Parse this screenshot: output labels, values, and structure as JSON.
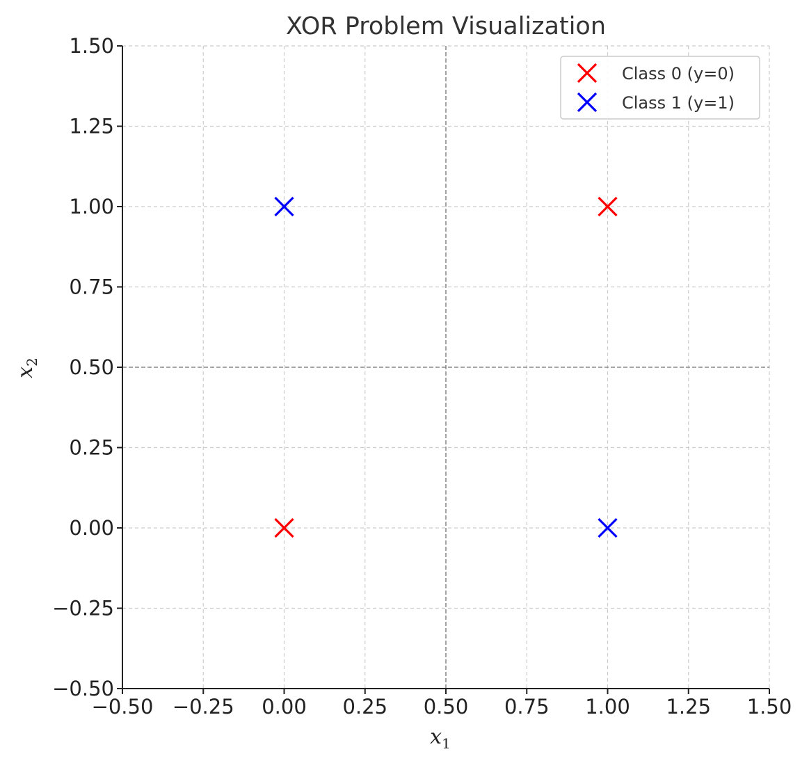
{
  "chart_data": {
    "type": "scatter",
    "title": "XOR Problem Visualization",
    "xlabel": {
      "base": "x",
      "sub": "1"
    },
    "ylabel": {
      "base": "x",
      "sub": "2"
    },
    "xlim": [
      -0.5,
      1.5
    ],
    "ylim": [
      -0.5,
      1.5
    ],
    "xticks": [
      -0.5,
      -0.25,
      0.0,
      0.25,
      0.5,
      0.75,
      1.0,
      1.25,
      1.5
    ],
    "yticks": [
      -0.5,
      -0.25,
      0.0,
      0.25,
      0.5,
      0.75,
      1.0,
      1.25,
      1.5
    ],
    "xtick_labels": [
      "−0.50",
      "−0.25",
      "0.00",
      "0.25",
      "0.50",
      "0.75",
      "1.00",
      "1.25",
      "1.50"
    ],
    "ytick_labels": [
      "−0.50",
      "−0.25",
      "0.00",
      "0.25",
      "0.50",
      "0.75",
      "1.00",
      "1.25",
      "1.50"
    ],
    "grid": true,
    "reference_lines": {
      "x": 0.5,
      "y": 0.5
    },
    "legend_position": "top-right",
    "series": [
      {
        "name": "Class 0 (y=0)",
        "color": "#ff0000",
        "marker": "x",
        "points": [
          [
            0,
            0
          ],
          [
            1,
            1
          ]
        ]
      },
      {
        "name": "Class 1 (y=1)",
        "color": "#0000ff",
        "marker": "x",
        "points": [
          [
            0,
            1
          ],
          [
            1,
            0
          ]
        ]
      }
    ]
  }
}
